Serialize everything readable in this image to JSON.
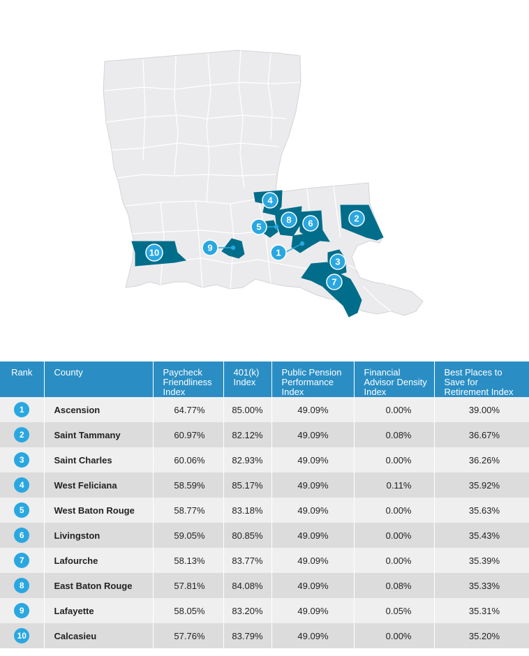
{
  "colors": {
    "state_fill": "#ebebed",
    "parish_line": "#ffffff",
    "highlight": "#006d8a",
    "marker": "#2aa7e0",
    "header_bg": "#2a8ec4",
    "row_light": "#efefef",
    "row_dark": "#dcdcdc"
  },
  "map": {
    "markers": [
      {
        "label": "1"
      },
      {
        "label": "2"
      },
      {
        "label": "3"
      },
      {
        "label": "4"
      },
      {
        "label": "5"
      },
      {
        "label": "6"
      },
      {
        "label": "7"
      },
      {
        "label": "8"
      },
      {
        "label": "9"
      },
      {
        "label": "10"
      }
    ]
  },
  "table": {
    "headers": {
      "rank": "Rank",
      "county": "County",
      "paycheck": "Paycheck Friendliness Index",
      "k401": "401(k) Index",
      "pension": "Public Pension Performance Index",
      "advisor": "Financial Advisor Density Index",
      "best": "Best Places to Save for Retirement Index"
    },
    "rows": [
      {
        "rank": "1",
        "county": "Ascension",
        "paycheck": "64.77%",
        "k401": "85.00%",
        "pension": "49.09%",
        "advisor": "0.00%",
        "best": "39.00%"
      },
      {
        "rank": "2",
        "county": "Saint Tammany",
        "paycheck": "60.97%",
        "k401": "82.12%",
        "pension": "49.09%",
        "advisor": "0.08%",
        "best": "36.67%"
      },
      {
        "rank": "3",
        "county": "Saint Charles",
        "paycheck": "60.06%",
        "k401": "82.93%",
        "pension": "49.09%",
        "advisor": "0.00%",
        "best": "36.26%"
      },
      {
        "rank": "4",
        "county": "West Feliciana",
        "paycheck": "58.59%",
        "k401": "85.17%",
        "pension": "49.09%",
        "advisor": "0.11%",
        "best": "35.92%"
      },
      {
        "rank": "5",
        "county": "West Baton Rouge",
        "paycheck": "58.77%",
        "k401": "83.18%",
        "pension": "49.09%",
        "advisor": "0.00%",
        "best": "35.63%"
      },
      {
        "rank": "6",
        "county": "Livingston",
        "paycheck": "59.05%",
        "k401": "80.85%",
        "pension": "49.09%",
        "advisor": "0.00%",
        "best": "35.43%"
      },
      {
        "rank": "7",
        "county": "Lafourche",
        "paycheck": "58.13%",
        "k401": "83.77%",
        "pension": "49.09%",
        "advisor": "0.00%",
        "best": "35.39%"
      },
      {
        "rank": "8",
        "county": "East Baton Rouge",
        "paycheck": "57.81%",
        "k401": "84.08%",
        "pension": "49.09%",
        "advisor": "0.08%",
        "best": "35.33%"
      },
      {
        "rank": "9",
        "county": "Lafayette",
        "paycheck": "58.05%",
        "k401": "83.20%",
        "pension": "49.09%",
        "advisor": "0.05%",
        "best": "35.31%"
      },
      {
        "rank": "10",
        "county": "Calcasieu",
        "paycheck": "57.76%",
        "k401": "83.79%",
        "pension": "49.09%",
        "advisor": "0.00%",
        "best": "35.20%"
      }
    ]
  }
}
